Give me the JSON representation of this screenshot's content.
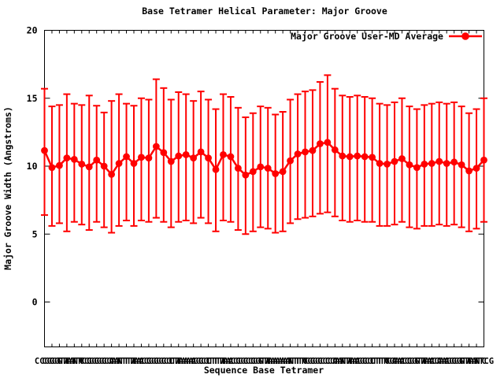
{
  "title": "Base Tetramer Helical Parameter: Major Groove",
  "legend": {
    "label": "Major Groove User-MD Average"
  },
  "axes": {
    "ylabel": "Major Groove Width (Angstroms)",
    "xlabel": "Sequence Base Tetramer",
    "ytick_labels": [
      "20",
      "15",
      "10",
      "5",
      "0"
    ],
    "xtick_note": "~60 base-tetramer labels drawn overlapping and illegible; first visible char 'C', strip ends with 'CG'"
  },
  "colors": {
    "series": "#ff0000",
    "text": "#000000",
    "background": "#ffffff",
    "frame": "#000000"
  },
  "chart_data": {
    "type": "line",
    "subtype": "points-with-error-bars",
    "title": "Base Tetramer Helical Parameter: Major Groove",
    "xlabel": "Sequence Base Tetramer",
    "ylabel": "Major Groove Width (Angstroms)",
    "ylim": [
      -3.3,
      20
    ],
    "yticks": [
      0,
      5,
      10,
      15,
      20
    ],
    "grid": false,
    "legend_position": "top-right-inside",
    "x_categories_approx_bases": "CCGGTATCGGCATTACGGCTAAGCTTACGCGTAAATTGGCCATAGCTTGACGTACAGGTATCG",
    "series": [
      {
        "name": "Major Groove User-MD Average",
        "color": "#ff0000",
        "marker": "filled-circle",
        "values": [
          11.15,
          9.9,
          10.05,
          10.6,
          10.5,
          10.15,
          9.95,
          10.45,
          10.0,
          9.4,
          10.2,
          10.7,
          10.2,
          10.65,
          10.6,
          11.45,
          11.0,
          10.35,
          10.75,
          10.85,
          10.6,
          11.05,
          10.6,
          9.75,
          10.85,
          10.7,
          9.85,
          9.35,
          9.6,
          9.95,
          9.85,
          9.45,
          9.6,
          10.4,
          10.9,
          11.05,
          11.15,
          11.65,
          11.75,
          11.2,
          10.75,
          10.7,
          10.75,
          10.7,
          10.65,
          10.2,
          10.15,
          10.35,
          10.55,
          10.1,
          9.9,
          10.15,
          10.2,
          10.35,
          10.2,
          10.3,
          10.1,
          9.65,
          9.85,
          10.45
        ],
        "err_high_abs": [
          15.7,
          14.4,
          14.5,
          15.3,
          14.6,
          14.5,
          15.2,
          14.45,
          13.95,
          14.8,
          15.3,
          14.6,
          14.45,
          15.0,
          14.9,
          16.4,
          15.75,
          14.9,
          15.45,
          15.3,
          14.8,
          15.5,
          14.9,
          14.2,
          15.3,
          15.1,
          14.3,
          13.6,
          13.9,
          14.4,
          14.3,
          13.8,
          14.0,
          14.9,
          15.3,
          15.5,
          15.6,
          16.2,
          16.7,
          15.7,
          15.2,
          15.1,
          15.2,
          15.1,
          15.0,
          14.6,
          14.5,
          14.7,
          15.0,
          14.4,
          14.2,
          14.5,
          14.6,
          14.7,
          14.6,
          14.7,
          14.4,
          13.9,
          14.2,
          15.0
        ],
        "err_low_abs": [
          6.4,
          5.6,
          5.8,
          5.2,
          5.9,
          5.7,
          5.3,
          5.9,
          5.5,
          5.1,
          5.6,
          6.0,
          5.6,
          6.0,
          5.9,
          6.2,
          5.9,
          5.5,
          5.9,
          6.0,
          5.8,
          6.2,
          5.8,
          5.2,
          6.0,
          5.9,
          5.3,
          5.0,
          5.2,
          5.5,
          5.4,
          5.1,
          5.2,
          5.8,
          6.1,
          6.2,
          6.3,
          6.5,
          6.6,
          6.3,
          6.0,
          5.9,
          6.0,
          5.9,
          5.9,
          5.6,
          5.6,
          5.7,
          5.9,
          5.5,
          5.4,
          5.6,
          5.6,
          5.7,
          5.6,
          5.7,
          5.5,
          5.2,
          5.4,
          5.9
        ]
      }
    ]
  }
}
